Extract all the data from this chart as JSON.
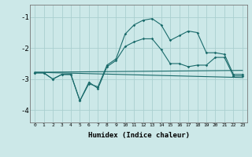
{
  "xlabel": "Humidex (Indice chaleur)",
  "ylabel": "",
  "bg_color": "#cce8e8",
  "grid_color": "#aacfcf",
  "line_color": "#1a6b6b",
  "xlim": [
    -0.5,
    23.5
  ],
  "ylim": [
    -4.4,
    -0.6
  ],
  "yticks": [
    -4,
    -3,
    -2,
    -1
  ],
  "xticks": [
    0,
    1,
    2,
    3,
    4,
    5,
    6,
    7,
    8,
    9,
    10,
    11,
    12,
    13,
    14,
    15,
    16,
    17,
    18,
    19,
    20,
    21,
    22,
    23
  ],
  "series1_x": [
    0,
    1,
    2,
    3,
    4,
    5,
    6,
    7,
    8,
    9,
    10,
    11,
    12,
    13,
    14,
    15,
    16,
    17,
    18,
    19,
    20,
    21,
    22,
    23
  ],
  "series1_y": [
    -2.8,
    -2.8,
    -3.0,
    -2.85,
    -2.85,
    -3.7,
    -3.15,
    -3.25,
    -2.55,
    -2.35,
    -1.55,
    -1.25,
    -1.1,
    -1.05,
    -1.25,
    -1.75,
    -1.6,
    -1.45,
    -1.5,
    -2.15,
    -2.15,
    -2.2,
    -2.85,
    -2.85
  ],
  "series2_x": [
    0,
    1,
    2,
    3,
    4,
    5,
    6,
    7,
    8,
    9,
    10,
    11,
    12,
    13,
    14,
    15,
    16,
    17,
    18,
    19,
    20,
    21,
    22,
    23
  ],
  "series2_y": [
    -2.8,
    -2.8,
    -3.0,
    -2.85,
    -2.85,
    -3.7,
    -3.1,
    -3.3,
    -2.6,
    -2.4,
    -1.95,
    -1.8,
    -1.7,
    -1.7,
    -2.05,
    -2.5,
    -2.5,
    -2.6,
    -2.55,
    -2.55,
    -2.3,
    -2.3,
    -2.9,
    -2.9
  ],
  "series3_x": [
    0,
    23
  ],
  "series3_y": [
    -2.78,
    -2.72
  ],
  "series4_x": [
    0,
    23
  ],
  "series4_y": [
    -2.78,
    -2.95
  ]
}
